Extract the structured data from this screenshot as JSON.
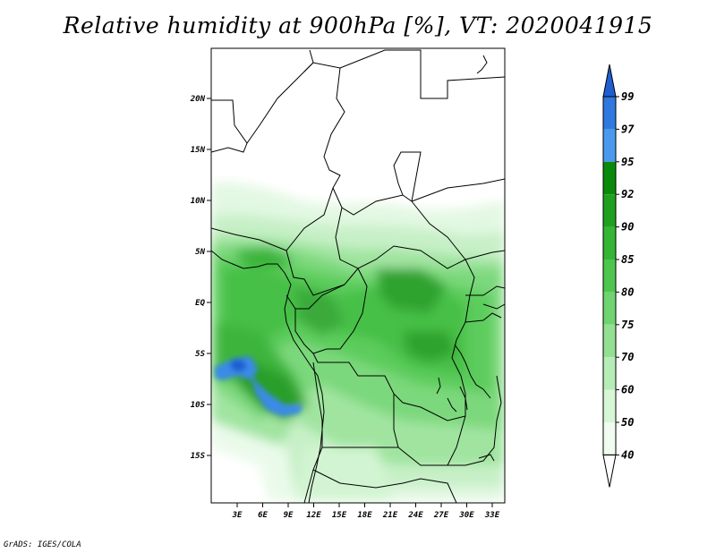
{
  "title": "Relative humidity at 900hPa [%], VT: 2020041915",
  "credit": "GrADS: IGES/COLA",
  "map": {
    "lat_labels": [
      "20N",
      "15N",
      "10N",
      "5N",
      "EQ",
      "5S",
      "10S",
      "15S"
    ],
    "lon_labels": [
      "3E",
      "6E",
      "9E",
      "12E",
      "15E",
      "18E",
      "21E",
      "24E",
      "27E",
      "30E",
      "33E"
    ]
  },
  "colorbar": {
    "labels": [
      "99",
      "97",
      "95",
      "92",
      "90",
      "85",
      "80",
      "75",
      "70",
      "60",
      "50",
      "40"
    ],
    "colors": [
      "#1f5fd0",
      "#2f78e0",
      "#4a99ee",
      "#0a8a0a",
      "#1fa11f",
      "#34b534",
      "#4ec64e",
      "#6fd46f",
      "#93e093",
      "#b6ecb6",
      "#d6f6d6",
      "#f0fcf0",
      "#ffffff"
    ]
  },
  "colors": {
    "land_boundary": "#000000",
    "frame": "#000000"
  }
}
